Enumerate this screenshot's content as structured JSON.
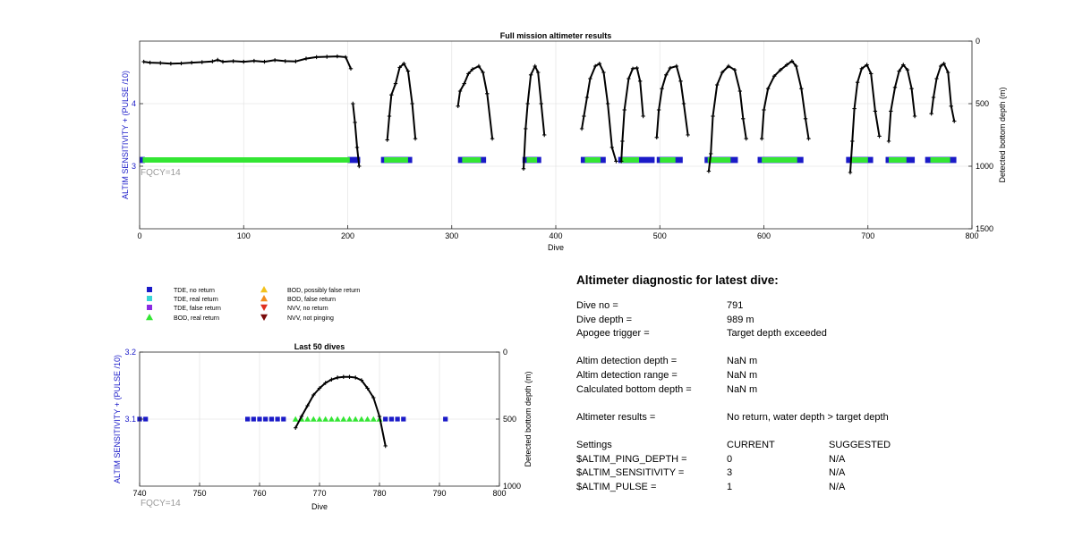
{
  "top_chart": {
    "title": "Full mission altimeter results",
    "xlabel": "Dive",
    "ylabel_left": "ALTIM SENSITIVITY + (PULSE /10)",
    "ylabel_right": "Detected bottom depth (m)",
    "annotation": "FQCY=14",
    "xticks": [
      "0",
      "100",
      "200",
      "300",
      "400",
      "500",
      "600",
      "700",
      "800"
    ],
    "yticks_left": [
      "3",
      "4"
    ],
    "yticks_right": [
      "0",
      "500",
      "1000",
      "1500"
    ]
  },
  "bottom_chart": {
    "title": "Last 50 dives",
    "xlabel": "Dive",
    "ylabel_left": "ALTIM SENSITIVITY + (PULSE /10)",
    "ylabel_right": "Detected bottom depth (m)",
    "annotation": "FQCY=14",
    "xticks": [
      "740",
      "750",
      "760",
      "770",
      "780",
      "790",
      "800"
    ],
    "yticks_left": [
      "3.1",
      "3.2"
    ],
    "yticks_right": [
      "0",
      "500",
      "1000"
    ]
  },
  "legend": [
    {
      "label": "TDE, no return",
      "color": "#1a1ac8",
      "marker": "square"
    },
    {
      "label": "TDE, real return",
      "color": "#38d6d6",
      "marker": "square"
    },
    {
      "label": "TDE, false return",
      "color": "#8a2be2",
      "marker": "square"
    },
    {
      "label": "BOD, real return",
      "color": "#33e633",
      "marker": "triangle-up"
    },
    {
      "label": "BOD, possibly false return",
      "color": "#f2c21c",
      "marker": "triangle-up"
    },
    {
      "label": "BOD, false return",
      "color": "#f28c1c",
      "marker": "triangle-up"
    },
    {
      "label": "NVV, no return",
      "color": "#e0301e",
      "marker": "triangle-down"
    },
    {
      "label": "NVV, not pinging",
      "color": "#7a0a0a",
      "marker": "triangle-down"
    }
  ],
  "diagnostic": {
    "title": "Altimeter diagnostic for latest dive:",
    "dive_no_label": "Dive no =",
    "dive_no": "791",
    "dive_depth_label": "Dive depth =",
    "dive_depth": "989 m",
    "apogee_label": "Apogee trigger =",
    "apogee": "Target depth exceeded",
    "det_depth_label": "Altim detection depth =",
    "det_depth": "NaN m",
    "det_range_label": "Altim detection range =",
    "det_range": "NaN m",
    "calc_depth_label": "Calculated bottom depth =",
    "calc_depth": "NaN m",
    "results_label": "Altimeter results =",
    "results": "No return, water depth > target depth",
    "settings_label": "Settings",
    "current_label": "CURRENT",
    "suggested_label": "SUGGESTED",
    "ping_depth_label": "$ALTIM_PING_DEPTH =",
    "ping_depth_current": "0",
    "ping_depth_suggested": "N/A",
    "sensitivity_label": "$ALTIM_SENSITIVITY =",
    "sensitivity_current": "3",
    "sensitivity_suggested": "N/A",
    "pulse_label": "$ALTIM_PULSE =",
    "pulse_current": "1",
    "pulse_suggested": "N/A"
  },
  "chart_data": [
    {
      "type": "scatter",
      "title": "Full mission altimeter results",
      "xlabel": "Dive",
      "ylabel": "ALTIM SENSITIVITY + (PULSE /10)",
      "y2label": "Detected bottom depth (m)",
      "xlim": [
        0,
        800
      ],
      "ylim": [
        2,
        5
      ],
      "y2lim": [
        1500,
        0
      ],
      "grid": true,
      "series": [
        {
          "name": "TDE, no return",
          "y": 3.1,
          "x_ranges": [
            [
              0,
              5
            ],
            [
              200,
              212
            ],
            [
              232,
              262
            ],
            [
              306,
              333
            ],
            [
              368,
              386
            ],
            [
              424,
              448
            ],
            [
              460,
              495
            ],
            [
              497,
              522
            ],
            [
              543,
              575
            ],
            [
              594,
              638
            ],
            [
              679,
              705
            ],
            [
              717,
              745
            ],
            [
              755,
              785
            ]
          ]
        },
        {
          "name": "BOD, real return",
          "y": 3.1,
          "x_ranges": [
            [
              3,
              202
            ],
            [
              235,
              258
            ],
            [
              310,
              328
            ],
            [
              372,
              382
            ],
            [
              428,
              443
            ],
            [
              463,
              480
            ],
            [
              500,
              515
            ],
            [
              546,
              568
            ],
            [
              598,
              632
            ],
            [
              684,
              700
            ],
            [
              720,
              737
            ],
            [
              760,
              779
            ]
          ]
        }
      ],
      "bottom_depth": {
        "axis": "right",
        "segments": [
          [
            [
              4,
              165
            ],
            [
              10,
              172
            ],
            [
              20,
              175
            ],
            [
              30,
              180
            ],
            [
              40,
              178
            ],
            [
              50,
              172
            ],
            [
              60,
              168
            ],
            [
              70,
              162
            ],
            [
              75,
              150
            ],
            [
              80,
              165
            ],
            [
              90,
              160
            ],
            [
              100,
              165
            ],
            [
              110,
              158
            ],
            [
              120,
              165
            ],
            [
              130,
              152
            ],
            [
              140,
              160
            ],
            [
              150,
              162
            ],
            [
              160,
              140
            ],
            [
              170,
              128
            ],
            [
              180,
              125
            ],
            [
              190,
              122
            ],
            [
              198,
              128
            ],
            [
              203,
              220
            ]
          ],
          [
            [
              205,
              500
            ],
            [
              207,
              650
            ],
            [
              209,
              850
            ],
            [
              211,
              1000
            ]
          ],
          [
            [
              238,
              790
            ],
            [
              240,
              600
            ],
            [
              242,
              430
            ],
            [
              246,
              340
            ],
            [
              250,
              210
            ],
            [
              254,
              180
            ],
            [
              258,
              240
            ],
            [
              262,
              500
            ],
            [
              265,
              780
            ]
          ],
          [
            [
              306,
              520
            ],
            [
              308,
              400
            ],
            [
              312,
              340
            ],
            [
              316,
              260
            ],
            [
              320,
              225
            ],
            [
              326,
              200
            ],
            [
              330,
              250
            ],
            [
              334,
              420
            ],
            [
              339,
              780
            ]
          ],
          [
            [
              369,
              1020
            ],
            [
              371,
              700
            ],
            [
              373,
              500
            ],
            [
              376,
              270
            ],
            [
              380,
              200
            ],
            [
              383,
              250
            ],
            [
              386,
              500
            ],
            [
              389,
              750
            ]
          ],
          [
            [
              425,
              700
            ],
            [
              427,
              600
            ],
            [
              430,
              450
            ],
            [
              433,
              300
            ],
            [
              438,
              200
            ],
            [
              442,
              180
            ],
            [
              446,
              250
            ],
            [
              450,
              500
            ],
            [
              454,
              850
            ],
            [
              458,
              960
            ]
          ],
          [
            [
              463,
              960
            ],
            [
              464,
              800
            ],
            [
              466,
              550
            ],
            [
              470,
              300
            ],
            [
              474,
              220
            ],
            [
              478,
              215
            ],
            [
              481,
              320
            ],
            [
              484,
              600
            ]
          ],
          [
            [
              497,
              770
            ],
            [
              499,
              550
            ],
            [
              502,
              380
            ],
            [
              506,
              270
            ],
            [
              510,
              215
            ],
            [
              516,
              200
            ],
            [
              520,
              320
            ],
            [
              523,
              500
            ],
            [
              527,
              750
            ]
          ],
          [
            [
              547,
              1040
            ],
            [
              549,
              900
            ],
            [
              551,
              600
            ],
            [
              555,
              350
            ],
            [
              560,
              250
            ],
            [
              566,
              200
            ],
            [
              572,
              230
            ],
            [
              577,
              400
            ],
            [
              580,
              620
            ],
            [
              583,
              780
            ]
          ],
          [
            [
              598,
              780
            ],
            [
              600,
              550
            ],
            [
              604,
              380
            ],
            [
              610,
              280
            ],
            [
              616,
              230
            ],
            [
              622,
              190
            ],
            [
              627,
              160
            ],
            [
              631,
              200
            ],
            [
              636,
              380
            ],
            [
              640,
              620
            ],
            [
              643,
              780
            ]
          ],
          [
            [
              683,
              1050
            ],
            [
              685,
              800
            ],
            [
              687,
              540
            ],
            [
              690,
              330
            ],
            [
              694,
              220
            ],
            [
              699,
              190
            ],
            [
              703,
              260
            ],
            [
              707,
              560
            ],
            [
              711,
              760
            ]
          ],
          [
            [
              720,
              800
            ],
            [
              722,
              560
            ],
            [
              726,
              370
            ],
            [
              730,
              240
            ],
            [
              734,
              190
            ],
            [
              738,
              230
            ],
            [
              742,
              380
            ],
            [
              745,
              600
            ]
          ],
          [
            [
              761,
              580
            ],
            [
              763,
              450
            ],
            [
              766,
              300
            ],
            [
              770,
              200
            ],
            [
              773,
              180
            ],
            [
              777,
              250
            ],
            [
              780,
              520
            ],
            [
              783,
              640
            ]
          ]
        ]
      }
    },
    {
      "type": "scatter",
      "title": "Last 50 dives",
      "xlabel": "Dive",
      "ylabel": "ALTIM SENSITIVITY + (PULSE /10)",
      "y2label": "Detected bottom depth (m)",
      "xlim": [
        740,
        800
      ],
      "ylim": [
        3.0,
        3.2
      ],
      "y2lim": [
        1000,
        0
      ],
      "grid": true,
      "series": [
        {
          "name": "TDE, no return",
          "y": 3.1,
          "x": [
            740,
            741,
            758,
            759,
            760,
            761,
            762,
            763,
            764,
            781,
            782,
            783,
            784,
            791
          ]
        },
        {
          "name": "BOD, real return",
          "y": 3.1,
          "x": [
            766,
            767,
            768,
            769,
            770,
            771,
            772,
            773,
            774,
            775,
            776,
            777,
            778,
            779,
            780
          ]
        }
      ],
      "bottom_depth": {
        "axis": "right",
        "segments": [
          [
            [
              766,
              565
            ],
            [
              767,
              480
            ],
            [
              768,
              400
            ],
            [
              769,
              320
            ],
            [
              770,
              270
            ],
            [
              771,
              230
            ],
            [
              772,
              205
            ],
            [
              773,
              190
            ],
            [
              774,
              185
            ],
            [
              775,
              185
            ],
            [
              776,
              190
            ],
            [
              777,
              210
            ],
            [
              778,
              270
            ],
            [
              779,
              340
            ],
            [
              780,
              480
            ],
            [
              781,
              700
            ]
          ]
        ]
      }
    }
  ]
}
